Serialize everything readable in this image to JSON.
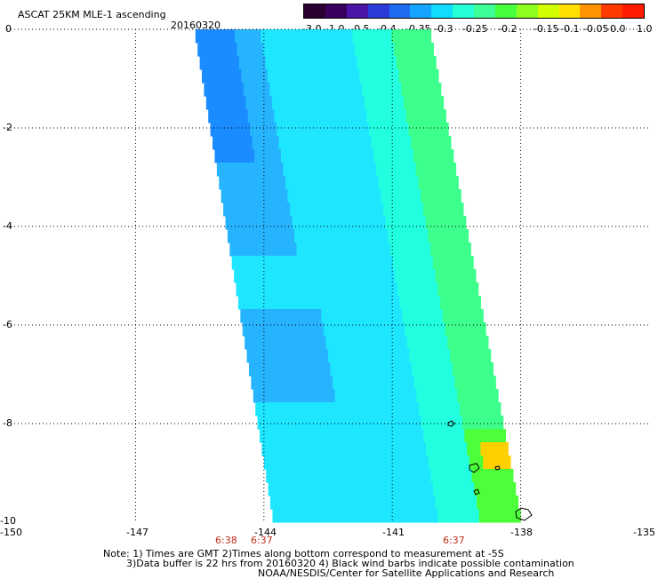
{
  "header": {
    "title": "ASCAT 25KM MLE-1 ascending",
    "date": "20160320"
  },
  "colorbar": {
    "colors": [
      "#2a0033",
      "#3a0060",
      "#4b16a8",
      "#2a3cd8",
      "#1f6cf0",
      "#14a4ff",
      "#10dcff",
      "#25ffd7",
      "#3cff96",
      "#47ff3f",
      "#8cff1e",
      "#d2ff00",
      "#ffe000",
      "#ff9500",
      "#ff3a00",
      "#ff1a00"
    ],
    "labels": [
      "-3.0",
      "-1.0",
      "-0.5",
      "-0.4",
      "-0.35",
      "-0.3",
      "-0.25",
      "-0.2",
      "-0.15",
      "-0.1",
      "-0.05",
      "0.0",
      "1.0"
    ]
  },
  "axes": {
    "y_ticks": [
      "0",
      "-2",
      "-4",
      "-6",
      "-8",
      "-10"
    ],
    "x_ticks": [
      "-150",
      "-147",
      "-144",
      "-141",
      "-138",
      "-135"
    ],
    "y_range": [
      -10,
      0
    ],
    "x_range": [
      -150,
      -135
    ]
  },
  "times": [
    "6:38",
    "6:37",
    "6:37"
  ],
  "notes": {
    "line1": "Note: 1) Times are GMT 2)Times along bottom correspond to measurement at -5S",
    "line2": "3)Data buffer is 22 hrs from 20160320 4) Black wind barbs indicate possible contamination",
    "line3": "NOAA/NESDIS/Center for Satellite Applications and Research"
  },
  "swath_colors": {
    "deep_blue": "#1a8cff",
    "blue": "#26b4ff",
    "cyan": "#1ee6ff",
    "aqua": "#21ffe0",
    "green": "#3cff8c",
    "bright_green": "#4cff3a",
    "yellow": "#ffd000"
  }
}
